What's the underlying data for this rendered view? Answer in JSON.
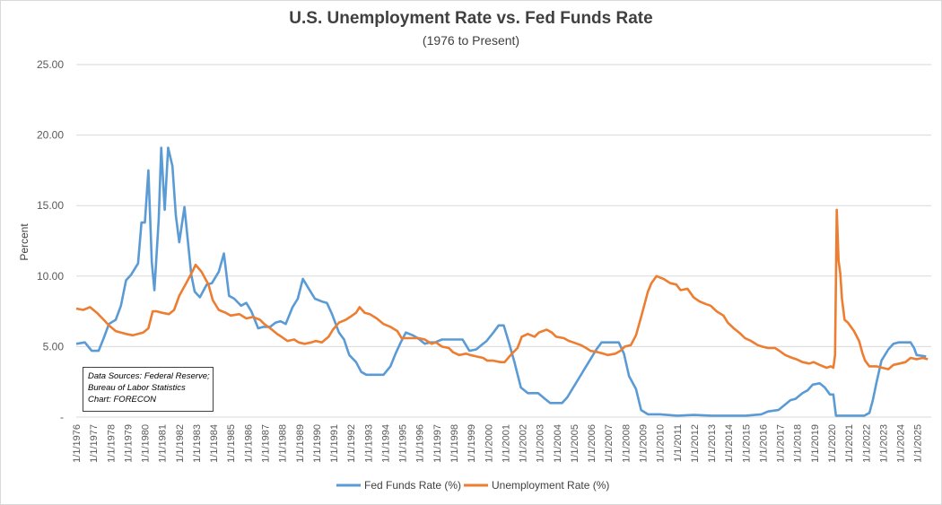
{
  "chart_data": {
    "type": "line",
    "title": "U.S. Unemployment Rate vs. Fed Funds Rate",
    "subtitle": "(1976 to Present)",
    "ylabel": "Percent",
    "ylim": [
      0,
      25
    ],
    "yticks": [
      "-",
      "5.00",
      "10.00",
      "15.00",
      "20.00",
      "25.00"
    ],
    "xlim": [
      1976,
      2025.8
    ],
    "xticks": [
      "1/1/1976",
      "1/1/1977",
      "1/1/1978",
      "1/1/1979",
      "1/1/1980",
      "1/1/1981",
      "1/1/1982",
      "1/1/1983",
      "1/1/1984",
      "1/1/1985",
      "1/1/1986",
      "1/1/1987",
      "1/1/1988",
      "1/1/1989",
      "1/1/1990",
      "1/1/1991",
      "1/1/1992",
      "1/1/1993",
      "1/1/1994",
      "1/1/1995",
      "1/1/1996",
      "1/1/1997",
      "1/1/1998",
      "1/1/1999",
      "1/1/2000",
      "1/1/2001",
      "1/1/2002",
      "1/1/2003",
      "1/1/2004",
      "1/1/2005",
      "1/1/2006",
      "1/1/2007",
      "1/1/2008",
      "1/1/2009",
      "1/1/2010",
      "1/1/2011",
      "1/1/2012",
      "1/1/2013",
      "1/1/2014",
      "1/1/2015",
      "1/1/2016",
      "1/1/2017",
      "1/1/2018",
      "1/1/2019",
      "1/1/2020",
      "1/1/2021",
      "1/1/2022",
      "1/1/2023",
      "1/1/2024",
      "1/1/2025"
    ],
    "grid": true,
    "legend": "bottom",
    "series": [
      {
        "name": "Fed Funds Rate (%)",
        "color": "#5b9bd5",
        "points": [
          [
            1976.0,
            5.2
          ],
          [
            1976.5,
            5.3
          ],
          [
            1976.9,
            4.7
          ],
          [
            1977.3,
            4.7
          ],
          [
            1977.6,
            5.6
          ],
          [
            1977.9,
            6.6
          ],
          [
            1978.3,
            6.9
          ],
          [
            1978.6,
            7.9
          ],
          [
            1978.9,
            9.7
          ],
          [
            1979.2,
            10.1
          ],
          [
            1979.6,
            10.9
          ],
          [
            1979.8,
            13.8
          ],
          [
            1980.0,
            13.8
          ],
          [
            1980.2,
            17.5
          ],
          [
            1980.4,
            11.0
          ],
          [
            1980.55,
            9.0
          ],
          [
            1980.8,
            14.0
          ],
          [
            1980.95,
            19.1
          ],
          [
            1981.15,
            14.7
          ],
          [
            1981.35,
            19.1
          ],
          [
            1981.6,
            17.8
          ],
          [
            1981.8,
            14.3
          ],
          [
            1982.0,
            12.4
          ],
          [
            1982.3,
            14.9
          ],
          [
            1982.5,
            12.5
          ],
          [
            1982.7,
            10.1
          ],
          [
            1982.9,
            8.9
          ],
          [
            1983.2,
            8.5
          ],
          [
            1983.6,
            9.4
          ],
          [
            1983.9,
            9.5
          ],
          [
            1984.3,
            10.3
          ],
          [
            1984.6,
            11.6
          ],
          [
            1984.9,
            8.6
          ],
          [
            1985.2,
            8.4
          ],
          [
            1985.6,
            7.9
          ],
          [
            1985.9,
            8.1
          ],
          [
            1986.2,
            7.5
          ],
          [
            1986.6,
            6.3
          ],
          [
            1986.9,
            6.4
          ],
          [
            1987.3,
            6.4
          ],
          [
            1987.6,
            6.7
          ],
          [
            1987.9,
            6.8
          ],
          [
            1988.2,
            6.6
          ],
          [
            1988.6,
            7.8
          ],
          [
            1988.9,
            8.4
          ],
          [
            1989.2,
            9.8
          ],
          [
            1989.5,
            9.2
          ],
          [
            1989.9,
            8.4
          ],
          [
            1990.3,
            8.2
          ],
          [
            1990.6,
            8.1
          ],
          [
            1990.9,
            7.3
          ],
          [
            1991.3,
            6.0
          ],
          [
            1991.6,
            5.5
          ],
          [
            1991.9,
            4.4
          ],
          [
            1992.3,
            3.9
          ],
          [
            1992.6,
            3.2
          ],
          [
            1992.9,
            3.0
          ],
          [
            1993.5,
            3.0
          ],
          [
            1993.9,
            3.0
          ],
          [
            1994.3,
            3.6
          ],
          [
            1994.6,
            4.5
          ],
          [
            1994.9,
            5.3
          ],
          [
            1995.2,
            6.0
          ],
          [
            1995.6,
            5.8
          ],
          [
            1995.9,
            5.6
          ],
          [
            1996.3,
            5.2
          ],
          [
            1996.6,
            5.3
          ],
          [
            1996.9,
            5.3
          ],
          [
            1997.3,
            5.5
          ],
          [
            1997.9,
            5.5
          ],
          [
            1998.5,
            5.5
          ],
          [
            1998.9,
            4.7
          ],
          [
            1999.3,
            4.8
          ],
          [
            1999.6,
            5.1
          ],
          [
            1999.9,
            5.4
          ],
          [
            2000.3,
            6.0
          ],
          [
            2000.6,
            6.5
          ],
          [
            2000.9,
            6.5
          ],
          [
            2001.2,
            5.3
          ],
          [
            2001.5,
            4.0
          ],
          [
            2001.9,
            2.1
          ],
          [
            2002.3,
            1.7
          ],
          [
            2002.9,
            1.7
          ],
          [
            2003.3,
            1.3
          ],
          [
            2003.6,
            1.0
          ],
          [
            2004.3,
            1.0
          ],
          [
            2004.6,
            1.4
          ],
          [
            2004.9,
            2.0
          ],
          [
            2005.3,
            2.8
          ],
          [
            2005.6,
            3.4
          ],
          [
            2005.9,
            4.0
          ],
          [
            2006.3,
            4.8
          ],
          [
            2006.6,
            5.3
          ],
          [
            2007.0,
            5.3
          ],
          [
            2007.6,
            5.3
          ],
          [
            2007.9,
            4.5
          ],
          [
            2008.2,
            2.9
          ],
          [
            2008.6,
            2.0
          ],
          [
            2008.9,
            0.5
          ],
          [
            2009.3,
            0.2
          ],
          [
            2010.0,
            0.2
          ],
          [
            2011.0,
            0.1
          ],
          [
            2012.0,
            0.15
          ],
          [
            2013.0,
            0.1
          ],
          [
            2014.0,
            0.1
          ],
          [
            2015.0,
            0.1
          ],
          [
            2015.9,
            0.2
          ],
          [
            2016.3,
            0.4
          ],
          [
            2016.9,
            0.5
          ],
          [
            2017.3,
            0.9
          ],
          [
            2017.6,
            1.2
          ],
          [
            2017.9,
            1.3
          ],
          [
            2018.3,
            1.7
          ],
          [
            2018.6,
            1.9
          ],
          [
            2018.9,
            2.3
          ],
          [
            2019.3,
            2.4
          ],
          [
            2019.6,
            2.1
          ],
          [
            2019.9,
            1.6
          ],
          [
            2020.1,
            1.6
          ],
          [
            2020.25,
            0.1
          ],
          [
            2021.0,
            0.1
          ],
          [
            2021.9,
            0.1
          ],
          [
            2022.2,
            0.3
          ],
          [
            2022.4,
            1.2
          ],
          [
            2022.6,
            2.4
          ],
          [
            2022.9,
            4.0
          ],
          [
            2023.3,
            4.8
          ],
          [
            2023.6,
            5.2
          ],
          [
            2023.9,
            5.3
          ],
          [
            2024.6,
            5.3
          ],
          [
            2024.8,
            4.9
          ],
          [
            2024.95,
            4.4
          ],
          [
            2025.5,
            4.3
          ]
        ]
      },
      {
        "name": "Unemployment Rate (%)",
        "color": "#ed7d31",
        "points": [
          [
            1976.0,
            7.7
          ],
          [
            1976.4,
            7.6
          ],
          [
            1976.8,
            7.8
          ],
          [
            1977.2,
            7.4
          ],
          [
            1977.6,
            6.9
          ],
          [
            1977.9,
            6.5
          ],
          [
            1978.3,
            6.1
          ],
          [
            1978.6,
            6.0
          ],
          [
            1978.9,
            5.9
          ],
          [
            1979.3,
            5.8
          ],
          [
            1979.6,
            5.9
          ],
          [
            1979.9,
            6.0
          ],
          [
            1980.2,
            6.3
          ],
          [
            1980.45,
            7.5
          ],
          [
            1980.7,
            7.5
          ],
          [
            1981.0,
            7.4
          ],
          [
            1981.4,
            7.3
          ],
          [
            1981.7,
            7.6
          ],
          [
            1982.0,
            8.6
          ],
          [
            1982.4,
            9.5
          ],
          [
            1982.8,
            10.4
          ],
          [
            1982.95,
            10.8
          ],
          [
            1983.3,
            10.3
          ],
          [
            1983.7,
            9.4
          ],
          [
            1983.95,
            8.3
          ],
          [
            1984.3,
            7.6
          ],
          [
            1984.7,
            7.4
          ],
          [
            1985.0,
            7.2
          ],
          [
            1985.5,
            7.3
          ],
          [
            1985.9,
            7.0
          ],
          [
            1986.3,
            7.1
          ],
          [
            1986.7,
            6.9
          ],
          [
            1986.95,
            6.6
          ],
          [
            1987.3,
            6.3
          ],
          [
            1987.7,
            5.9
          ],
          [
            1987.95,
            5.7
          ],
          [
            1988.3,
            5.4
          ],
          [
            1988.7,
            5.5
          ],
          [
            1988.95,
            5.3
          ],
          [
            1989.3,
            5.2
          ],
          [
            1989.7,
            5.3
          ],
          [
            1989.95,
            5.4
          ],
          [
            1990.3,
            5.3
          ],
          [
            1990.7,
            5.7
          ],
          [
            1990.95,
            6.2
          ],
          [
            1991.3,
            6.7
          ],
          [
            1991.7,
            6.9
          ],
          [
            1991.95,
            7.1
          ],
          [
            1992.3,
            7.4
          ],
          [
            1992.5,
            7.8
          ],
          [
            1992.8,
            7.4
          ],
          [
            1993.1,
            7.3
          ],
          [
            1993.5,
            7.0
          ],
          [
            1993.9,
            6.6
          ],
          [
            1994.3,
            6.4
          ],
          [
            1994.7,
            6.1
          ],
          [
            1994.95,
            5.6
          ],
          [
            1995.3,
            5.6
          ],
          [
            1995.7,
            5.6
          ],
          [
            1995.95,
            5.6
          ],
          [
            1996.3,
            5.5
          ],
          [
            1996.7,
            5.2
          ],
          [
            1996.95,
            5.3
          ],
          [
            1997.3,
            5.0
          ],
          [
            1997.7,
            4.9
          ],
          [
            1997.95,
            4.6
          ],
          [
            1998.3,
            4.4
          ],
          [
            1998.7,
            4.5
          ],
          [
            1998.95,
            4.4
          ],
          [
            1999.3,
            4.3
          ],
          [
            1999.7,
            4.2
          ],
          [
            1999.95,
            4.0
          ],
          [
            2000.3,
            4.0
          ],
          [
            2000.7,
            3.9
          ],
          [
            2000.95,
            3.9
          ],
          [
            2001.3,
            4.4
          ],
          [
            2001.7,
            4.9
          ],
          [
            2001.95,
            5.7
          ],
          [
            2002.3,
            5.9
          ],
          [
            2002.7,
            5.7
          ],
          [
            2002.95,
            6.0
          ],
          [
            2003.4,
            6.2
          ],
          [
            2003.7,
            6.0
          ],
          [
            2003.95,
            5.7
          ],
          [
            2004.4,
            5.6
          ],
          [
            2004.7,
            5.4
          ],
          [
            2004.95,
            5.3
          ],
          [
            2005.4,
            5.1
          ],
          [
            2005.7,
            4.9
          ],
          [
            2005.95,
            4.7
          ],
          [
            2006.4,
            4.6
          ],
          [
            2006.7,
            4.5
          ],
          [
            2006.95,
            4.4
          ],
          [
            2007.4,
            4.5
          ],
          [
            2007.7,
            4.7
          ],
          [
            2007.95,
            5.0
          ],
          [
            2008.3,
            5.1
          ],
          [
            2008.6,
            5.8
          ],
          [
            2008.95,
            7.3
          ],
          [
            2009.3,
            8.9
          ],
          [
            2009.5,
            9.5
          ],
          [
            2009.8,
            10.0
          ],
          [
            2010.2,
            9.8
          ],
          [
            2010.6,
            9.5
          ],
          [
            2010.95,
            9.4
          ],
          [
            2011.2,
            9.0
          ],
          [
            2011.6,
            9.1
          ],
          [
            2011.95,
            8.5
          ],
          [
            2012.3,
            8.2
          ],
          [
            2012.7,
            8.0
          ],
          [
            2012.95,
            7.9
          ],
          [
            2013.3,
            7.5
          ],
          [
            2013.7,
            7.2
          ],
          [
            2013.95,
            6.7
          ],
          [
            2014.3,
            6.3
          ],
          [
            2014.7,
            5.9
          ],
          [
            2014.95,
            5.6
          ],
          [
            2015.3,
            5.4
          ],
          [
            2015.7,
            5.1
          ],
          [
            2015.95,
            5.0
          ],
          [
            2016.3,
            4.9
          ],
          [
            2016.7,
            4.9
          ],
          [
            2016.95,
            4.7
          ],
          [
            2017.3,
            4.4
          ],
          [
            2017.7,
            4.2
          ],
          [
            2017.95,
            4.1
          ],
          [
            2018.3,
            3.9
          ],
          [
            2018.7,
            3.8
          ],
          [
            2018.95,
            3.9
          ],
          [
            2019.3,
            3.7
          ],
          [
            2019.7,
            3.5
          ],
          [
            2019.95,
            3.6
          ],
          [
            2020.1,
            3.5
          ],
          [
            2020.2,
            4.4
          ],
          [
            2020.3,
            14.7
          ],
          [
            2020.4,
            11.1
          ],
          [
            2020.5,
            10.2
          ],
          [
            2020.6,
            8.4
          ],
          [
            2020.75,
            6.9
          ],
          [
            2020.95,
            6.7
          ],
          [
            2021.3,
            6.1
          ],
          [
            2021.6,
            5.4
          ],
          [
            2021.8,
            4.5
          ],
          [
            2021.95,
            4.0
          ],
          [
            2022.2,
            3.6
          ],
          [
            2022.6,
            3.6
          ],
          [
            2022.95,
            3.5
          ],
          [
            2023.3,
            3.4
          ],
          [
            2023.6,
            3.7
          ],
          [
            2023.95,
            3.8
          ],
          [
            2024.3,
            3.9
          ],
          [
            2024.6,
            4.2
          ],
          [
            2024.95,
            4.1
          ],
          [
            2025.3,
            4.2
          ],
          [
            2025.6,
            4.1
          ]
        ]
      }
    ],
    "source_note": [
      "Data Sources: Federal Reserve;",
      "Bureau of Labor Statistics",
      "Chart: FORECON"
    ]
  }
}
